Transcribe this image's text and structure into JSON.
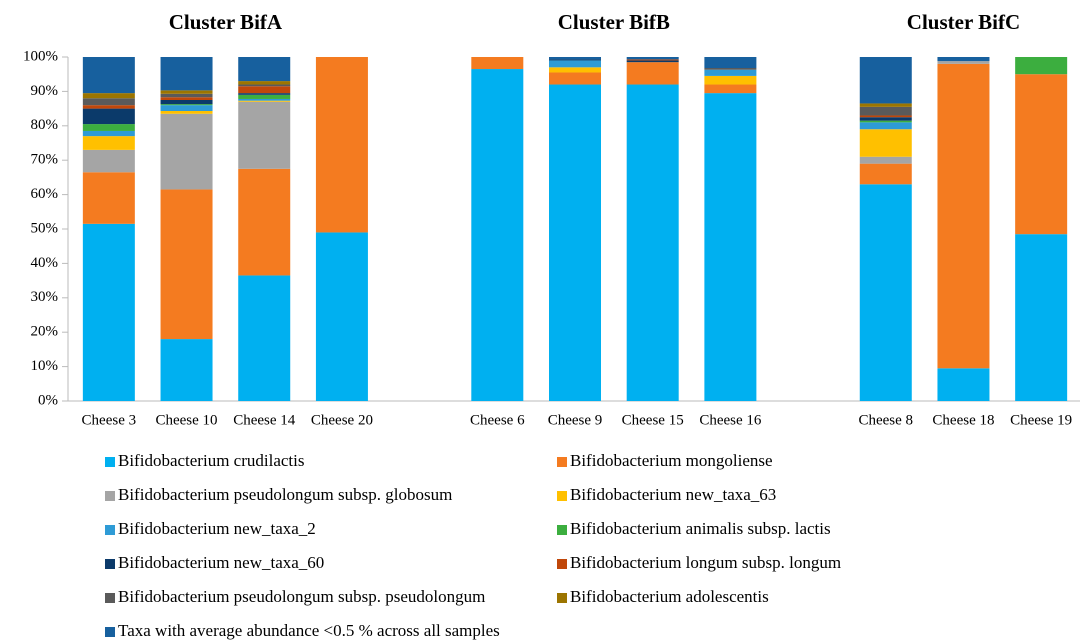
{
  "chart_data": {
    "type": "stacked_bar",
    "cluster_titles": [
      "Cluster BifA",
      "Cluster BifB",
      "Cluster BifC"
    ],
    "categories": [
      "Cheese 3",
      "Cheese 10",
      "Cheese 14",
      "Cheese 20",
      null,
      "Cheese 6",
      "Cheese 9",
      "Cheese 15",
      "Cheese 16",
      null,
      "Cheese 8",
      "Cheese 18",
      "Cheese 19"
    ],
    "ylim": [
      0,
      100
    ],
    "yticks": [
      {
        "value": 0,
        "label": "0%"
      },
      {
        "value": 10,
        "label": "10%"
      },
      {
        "value": 20,
        "label": "20%"
      },
      {
        "value": 30,
        "label": "30%"
      },
      {
        "value": 40,
        "label": "40%"
      },
      {
        "value": 50,
        "label": "50%"
      },
      {
        "value": 60,
        "label": "60%"
      },
      {
        "value": 70,
        "label": "70%"
      },
      {
        "value": 80,
        "label": "80%"
      },
      {
        "value": 90,
        "label": "90%"
      },
      {
        "value": 100,
        "label": "100%"
      }
    ],
    "grid": false,
    "series": [
      {
        "name": "Bifidobacterium crudilactis",
        "color": "#00b0f0",
        "values": [
          51.5,
          18,
          36.5,
          49,
          null,
          96.5,
          92,
          92,
          89.5,
          null,
          63,
          9.5,
          48.5
        ]
      },
      {
        "name": "Bifidobacterium mongoliense",
        "color": "#f47b20",
        "values": [
          15,
          43.5,
          31,
          51,
          null,
          3.5,
          3.5,
          6.5,
          2.5,
          null,
          6,
          88.5,
          46.5
        ]
      },
      {
        "name": "Bifidobacterium pseudolongum subsp. globosum",
        "color": "#a5a5a5",
        "values": [
          6.5,
          22,
          19.5,
          0,
          null,
          0,
          0,
          0,
          0,
          null,
          2,
          0.8,
          0
        ]
      },
      {
        "name": "Bifidobacterium new_taxa_63",
        "color": "#ffc000",
        "values": [
          4,
          0.8,
          0.3,
          0,
          null,
          0,
          1.5,
          0,
          2.5,
          null,
          8,
          0,
          0
        ]
      },
      {
        "name": "Bifidobacterium new_taxa_2",
        "color": "#2e9bd6",
        "values": [
          1.5,
          1.7,
          0.5,
          0,
          null,
          0,
          2,
          0,
          1.8,
          null,
          2,
          0,
          0
        ]
      },
      {
        "name": "Bifidobacterium animalis subsp. lactis",
        "color": "#3cae3f",
        "values": [
          2,
          0.3,
          1.2,
          0,
          null,
          0,
          0,
          0,
          0,
          null,
          0.5,
          0,
          5
        ]
      },
      {
        "name": "Bifidobacterium new_taxa_60",
        "color": "#0b3a6a",
        "values": [
          4.5,
          1.2,
          0.5,
          0,
          null,
          0,
          0.3,
          0.5,
          0,
          null,
          1,
          0,
          0
        ]
      },
      {
        "name": "Bifidobacterium longum subsp. longum",
        "color": "#c0470a",
        "values": [
          1,
          0.8,
          2,
          0,
          null,
          0,
          0,
          0.3,
          0,
          null,
          0.5,
          0,
          0
        ]
      },
      {
        "name": "Bifidobacterium pseudolongum subsp. pseudolongum",
        "color": "#5a5a5a",
        "values": [
          2,
          1,
          0.5,
          0,
          null,
          0,
          0,
          0,
          0.5,
          null,
          2.5,
          0,
          0
        ]
      },
      {
        "name": "Bifidobacterium adolescentis",
        "color": "#9c7500",
        "values": [
          1.5,
          1,
          1,
          0,
          null,
          0,
          0,
          0,
          0,
          null,
          1,
          0,
          0
        ]
      },
      {
        "name": "Taxa with average abundance <0.5 % across all samples",
        "color": "#17609e",
        "values": [
          10.5,
          9.7,
          7,
          0,
          null,
          0,
          0.7,
          0.7,
          3.2,
          null,
          13.5,
          1.2,
          0
        ]
      }
    ]
  }
}
